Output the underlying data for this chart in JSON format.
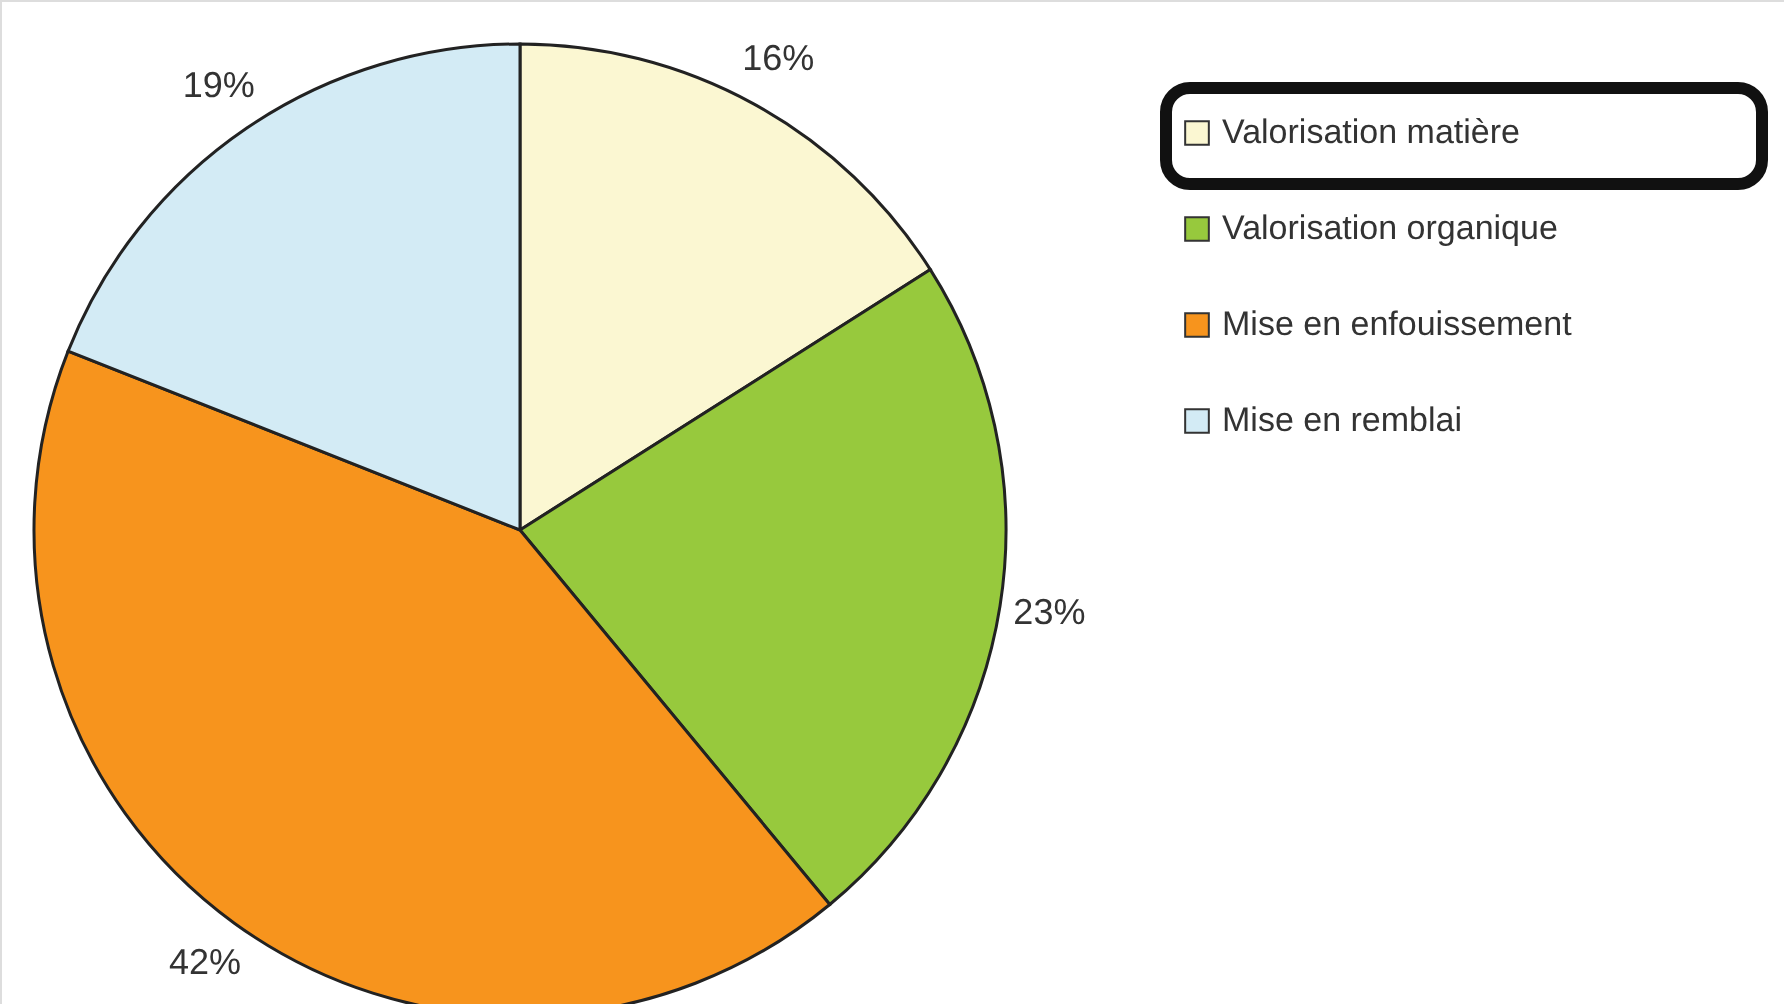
{
  "chart_data": {
    "type": "pie",
    "categories": [
      "Valorisation matière",
      "Valorisation organique",
      "Mise en enfouissement",
      "Mise en remblai"
    ],
    "values": [
      16,
      23,
      42,
      19
    ],
    "colors": [
      "#fbf7d2",
      "#97c93d",
      "#f7941d",
      "#d3ebf5"
    ],
    "value_labels": [
      "16%",
      "23%",
      "42%",
      "19%"
    ],
    "legend": "top right"
  }
}
